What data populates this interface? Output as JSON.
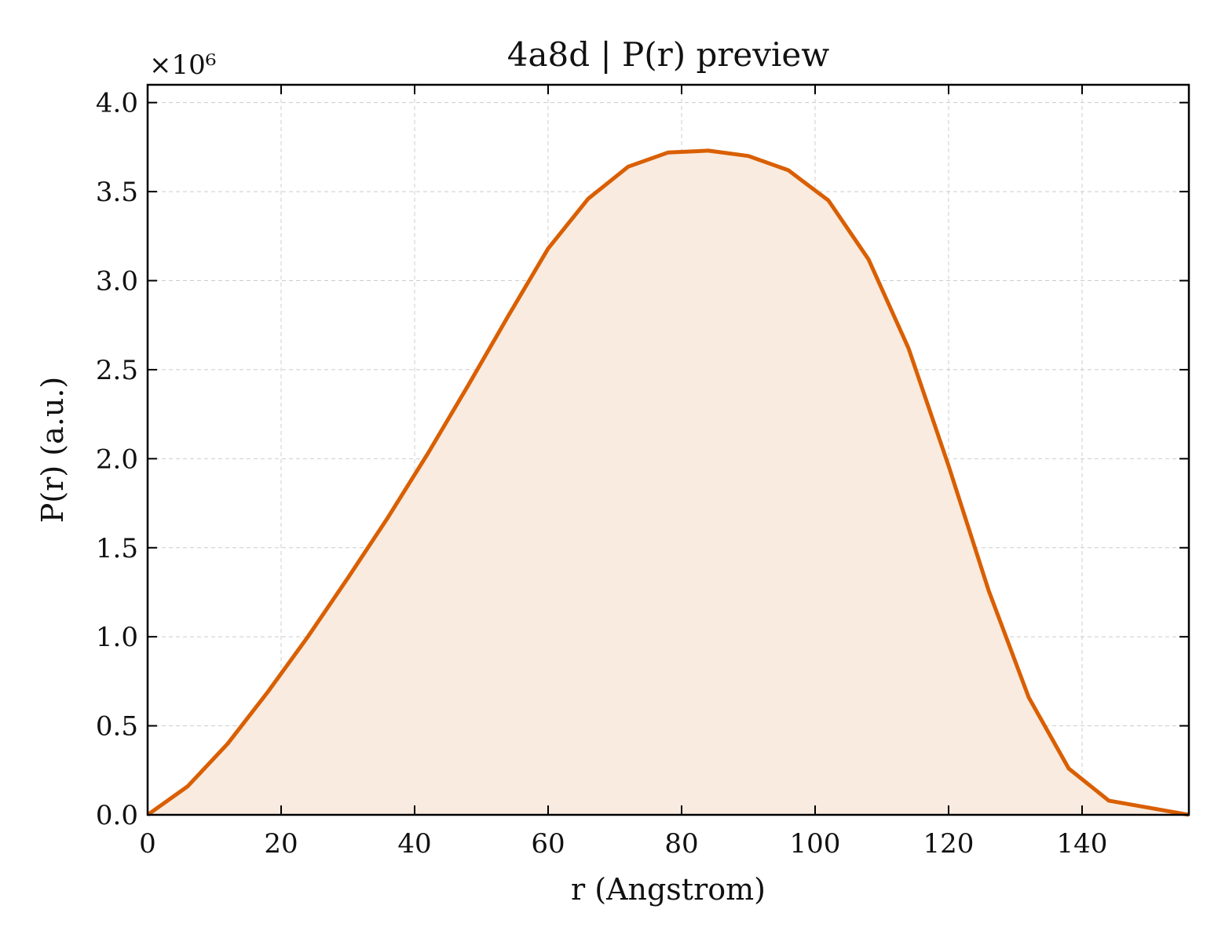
{
  "chart_data": {
    "type": "area",
    "title": "4a8d | P(r) preview",
    "xlabel": "r (Angstrom)",
    "ylabel": "P(r) (a.u.)",
    "y_offset_label": "×10⁶",
    "xlim": [
      0,
      156
    ],
    "ylim": [
      0,
      4.1
    ],
    "x_ticks": [
      0,
      20,
      40,
      60,
      80,
      100,
      120,
      140
    ],
    "y_ticks": [
      0.0,
      0.5,
      1.0,
      1.5,
      2.0,
      2.5,
      3.0,
      3.5,
      4.0
    ],
    "x_tick_labels": [
      "0",
      "20",
      "40",
      "60",
      "80",
      "100",
      "120",
      "140"
    ],
    "y_tick_labels": [
      "0.0",
      "0.5",
      "1.0",
      "1.5",
      "2.0",
      "2.5",
      "3.0",
      "3.5",
      "4.0"
    ],
    "grid": true,
    "series": [
      {
        "x": [
          0,
          6,
          12,
          18,
          24,
          30,
          36,
          42,
          48,
          54,
          60,
          66,
          72,
          78,
          84,
          90,
          96,
          102,
          108,
          114,
          120,
          126,
          132,
          138,
          144,
          150,
          156
        ],
        "y": [
          0.0,
          0.16,
          0.4,
          0.69,
          1.0,
          1.33,
          1.67,
          2.03,
          2.41,
          2.8,
          3.18,
          3.46,
          3.64,
          3.72,
          3.73,
          3.7,
          3.62,
          3.45,
          3.12,
          2.62,
          1.96,
          1.26,
          0.66,
          0.26,
          0.08,
          0.04,
          0.0
        ]
      }
    ],
    "colors": {
      "line": "#d95f02",
      "fill": "#f9ebe0"
    }
  }
}
